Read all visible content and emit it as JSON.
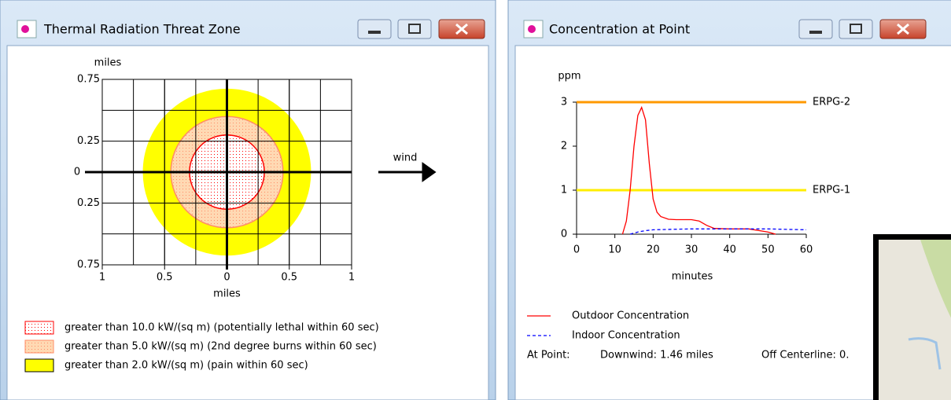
{
  "windows": [
    {
      "title": "Thermal Radiation Threat Zone"
    },
    {
      "title": "Concentration at Point"
    }
  ],
  "chart_data": [
    {
      "type": "threat-zone",
      "xlabel": "miles",
      "ylabel": "miles",
      "annotation": "wind",
      "xlim": [
        -1,
        1
      ],
      "ylim": [
        -0.75,
        0.75
      ],
      "xticks": [
        {
          "value": -1,
          "label": "1"
        },
        {
          "value": -0.5,
          "label": "0.5"
        },
        0,
        0.5,
        1
      ],
      "yticks": [
        0.75,
        0.25,
        0,
        {
          "value": -0.25,
          "label": "0.25"
        },
        {
          "value": -0.75,
          "label": "0.75"
        }
      ],
      "xgrid": [
        -0.75,
        -0.5,
        -0.25,
        0.25,
        0.5,
        0.75
      ],
      "ygrid": [
        -0.5,
        0.5
      ],
      "zones": [
        {
          "label": "greater than 2.0 kW/(sq m) (pain within 60 sec)",
          "radius": 0.67,
          "color": "#ffff00",
          "edge": "#ffff00",
          "pattern": false
        },
        {
          "label": "greater than 5.0 kW/(sq m) (2nd degree burns within 60 sec)",
          "radius": 0.45,
          "color": "#ffd9b3",
          "edge": "#ff8c66",
          "pattern": true
        },
        {
          "label": "greater than 10.0 kW/(sq m) (potentially lethal within 60 sec)",
          "radius": 0.3,
          "color": "#ffffff",
          "edge": "#ff0000",
          "pattern": true
        }
      ]
    },
    {
      "type": "line",
      "ylabel": "ppm",
      "xlabel": "minutes",
      "xlim": [
        0,
        60
      ],
      "ylim": [
        0,
        3
      ],
      "xticks": [
        0,
        10,
        20,
        30,
        40,
        50,
        60
      ],
      "yticks": [
        0,
        1,
        2,
        3
      ],
      "thresholds": [
        {
          "name": "ERPG-2",
          "value": 3,
          "color": "#ff9900"
        },
        {
          "name": "ERPG-1",
          "value": 1,
          "color": "#ffee00"
        }
      ],
      "series": [
        {
          "name": "Outdoor Concentration",
          "color": "#ff0000",
          "dashed": false,
          "x": [
            12,
            13,
            14,
            15,
            16,
            17,
            18,
            19,
            20,
            21,
            22,
            24,
            26,
            28,
            30,
            32,
            34,
            36,
            40,
            45,
            50,
            52
          ],
          "values": [
            0,
            0.3,
            1.0,
            2.0,
            2.7,
            2.88,
            2.6,
            1.6,
            0.8,
            0.5,
            0.4,
            0.34,
            0.33,
            0.33,
            0.33,
            0.3,
            0.2,
            0.13,
            0.12,
            0.12,
            0.05,
            0
          ]
        },
        {
          "name": "Indoor Concentration",
          "color": "#0000ff",
          "dashed": true,
          "x": [
            14,
            16,
            18,
            20,
            25,
            30,
            40,
            50,
            60
          ],
          "values": [
            0,
            0.05,
            0.08,
            0.1,
            0.11,
            0.12,
            0.12,
            0.12,
            0.1
          ]
        }
      ]
    }
  ],
  "status": [
    "At Point:",
    "Downwind: 1.46 miles",
    "Off Centerline: 0."
  ]
}
